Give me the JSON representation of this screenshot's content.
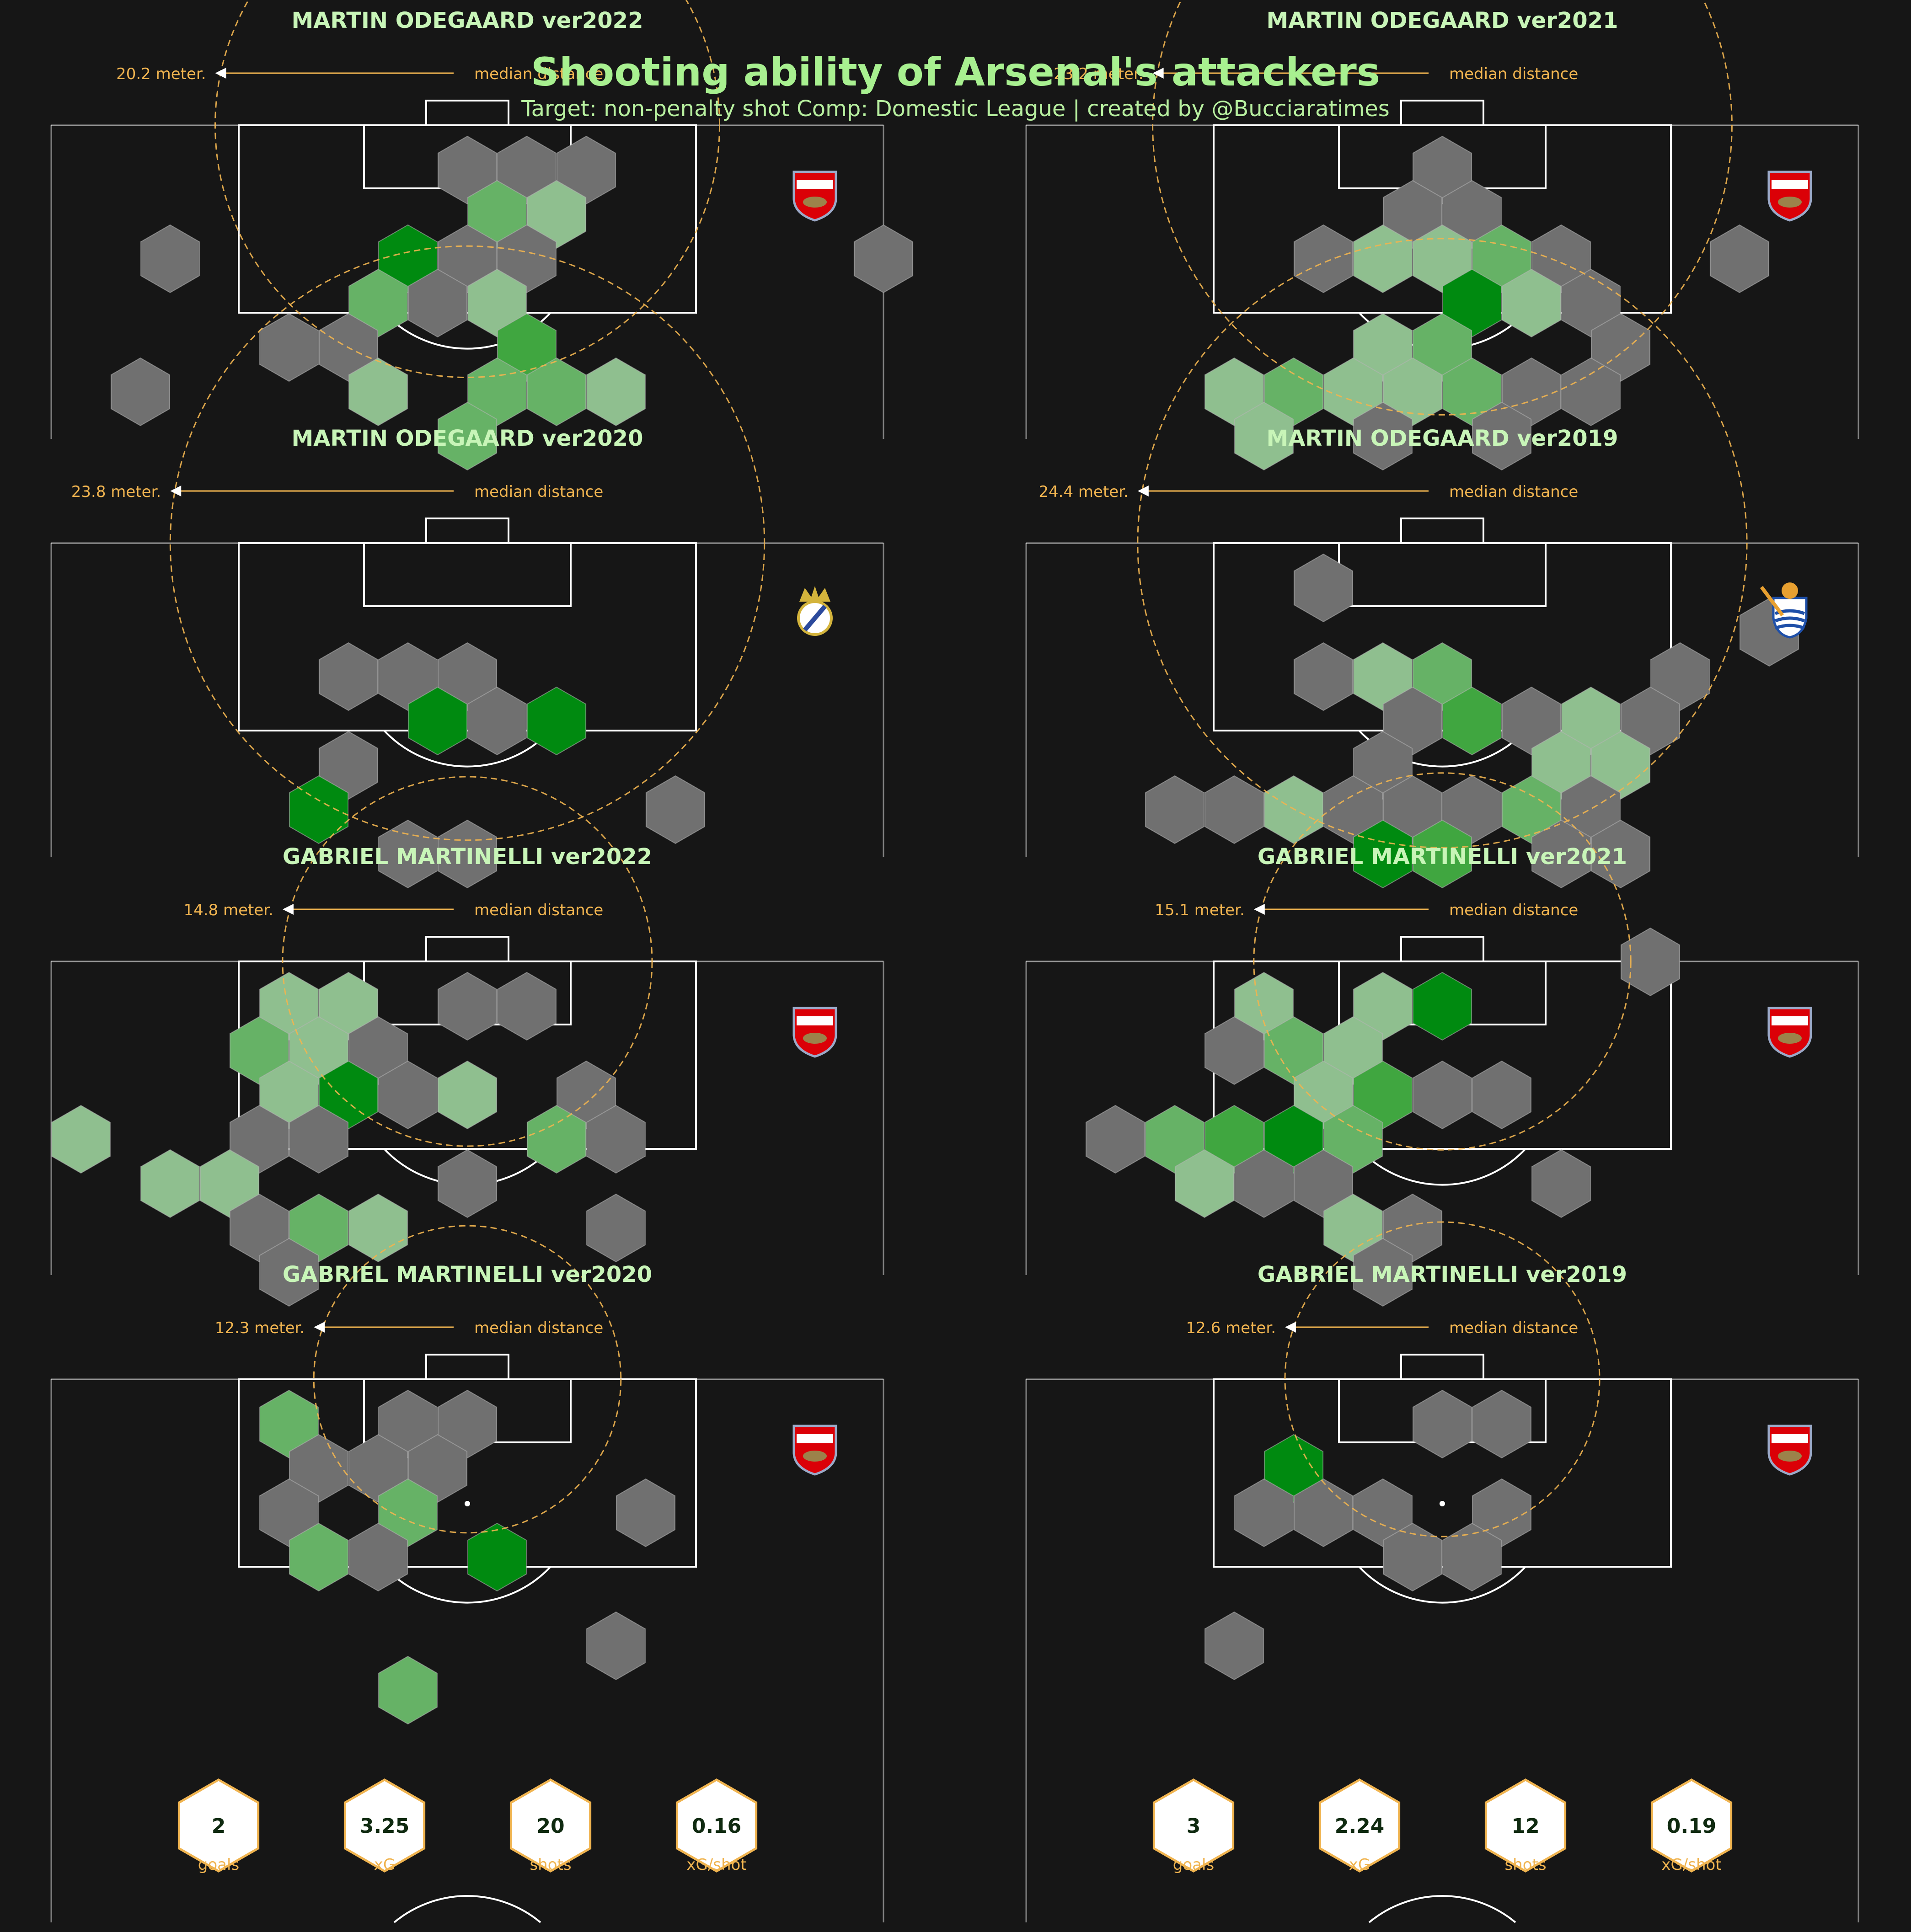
{
  "title": "Shooting ability of Arsenal's attackers",
  "subtitle": "Target: non-penalty shot Comp: Domestic League | created by @Bucciaratimes",
  "colors": {
    "background": "#161616",
    "title": "#a8f090",
    "panel_title": "#c8f5b8",
    "annotation": "#f0b450",
    "pitch_line": "#ffffff",
    "hex_grey": "#707070",
    "green_light": "#8fbf8f",
    "green_mid": "#66b266",
    "green_strong": "#40a640",
    "green_dark": "#008a10"
  },
  "median_label": "median distance",
  "chart_data": [
    {
      "type": "hexbin",
      "title": "MARTIN ODEGAARD ver2022",
      "club_logo": "arsenal-crest-icon",
      "median_distance": "20.2 meter.",
      "median_m": 20.2,
      "hexes": [
        [
          0,
          0,
          "g"
        ],
        [
          1,
          0,
          "g"
        ],
        [
          2,
          0,
          "g"
        ],
        [
          0,
          1,
          "m"
        ],
        [
          1,
          1,
          "l"
        ],
        [
          -5,
          2,
          "g"
        ],
        [
          -1,
          2,
          "d"
        ],
        [
          1,
          2,
          "g"
        ],
        [
          7,
          2,
          "g"
        ],
        [
          0,
          2,
          "g"
        ],
        [
          -2,
          3,
          "m"
        ],
        [
          -1,
          3,
          "g"
        ],
        [
          0,
          3,
          "l"
        ],
        [
          -3,
          4,
          "g"
        ],
        [
          -2,
          4,
          "g"
        ],
        [
          1,
          4,
          "s"
        ],
        [
          -6,
          5,
          "g"
        ],
        [
          -2,
          5,
          "l"
        ],
        [
          0,
          5,
          "m"
        ],
        [
          1,
          5,
          "m"
        ],
        [
          2,
          5,
          "l"
        ],
        [
          0,
          6,
          "m"
        ]
      ]
    },
    {
      "type": "hexbin",
      "title": "MARTIN ODEGAARD ver2021",
      "club_logo": "arsenal-crest-icon",
      "median_distance": "23.2 meter.",
      "median_m": 23.2,
      "hexes": [
        [
          0,
          0,
          "g"
        ],
        [
          -1,
          1,
          "g"
        ],
        [
          0,
          1,
          "g"
        ],
        [
          -2,
          2,
          "g"
        ],
        [
          -1,
          2,
          "l"
        ],
        [
          0,
          2,
          "l"
        ],
        [
          1,
          2,
          "m"
        ],
        [
          2,
          2,
          "g"
        ],
        [
          5,
          2,
          "g"
        ],
        [
          0,
          3,
          "d"
        ],
        [
          1,
          3,
          "l"
        ],
        [
          2,
          3,
          "g"
        ],
        [
          -1,
          4,
          "l"
        ],
        [
          0,
          4,
          "m"
        ],
        [
          3,
          4,
          "g"
        ],
        [
          -4,
          5,
          "l"
        ],
        [
          -3,
          5,
          "m"
        ],
        [
          -2,
          5,
          "l"
        ],
        [
          -1,
          5,
          "l"
        ],
        [
          0,
          5,
          "m"
        ],
        [
          1,
          5,
          "g"
        ],
        [
          2,
          5,
          "g"
        ],
        [
          -3,
          6,
          "l"
        ],
        [
          -1,
          6,
          "g"
        ],
        [
          1,
          6,
          "g"
        ]
      ]
    },
    {
      "type": "hexbin",
      "title": "MARTIN ODEGAARD ver2020",
      "club_logo": "real-madrid-crest-icon",
      "median_distance": "23.8 meter.",
      "median_m": 23.8,
      "hexes": [
        [
          -2,
          2,
          "g"
        ],
        [
          -1,
          2,
          "g"
        ],
        [
          0,
          2,
          "g"
        ],
        [
          -1,
          3,
          "d"
        ],
        [
          0,
          3,
          "g"
        ],
        [
          1,
          3,
          "d"
        ],
        [
          -2,
          4,
          "g"
        ],
        [
          -3,
          5,
          "d"
        ],
        [
          3,
          5,
          "g"
        ],
        [
          -1,
          6,
          "g"
        ],
        [
          0,
          6,
          "g"
        ]
      ]
    },
    {
      "type": "hexbin",
      "title": "MARTIN ODEGAARD ver2019",
      "club_logo": "real-sociedad-crest-icon",
      "median_distance": "24.4 meter.",
      "median_m": 24.4,
      "hexes": [
        [
          -2,
          0,
          "g"
        ],
        [
          5,
          1,
          "g"
        ],
        [
          -2,
          2,
          "g"
        ],
        [
          -1,
          2,
          "l"
        ],
        [
          0,
          2,
          "m"
        ],
        [
          4,
          2,
          "g"
        ],
        [
          -1,
          3,
          "g"
        ],
        [
          0,
          3,
          "s"
        ],
        [
          1,
          3,
          "g"
        ],
        [
          2,
          3,
          "l"
        ],
        [
          3,
          3,
          "g"
        ],
        [
          -1,
          4,
          "g"
        ],
        [
          2,
          4,
          "l"
        ],
        [
          3,
          4,
          "l"
        ],
        [
          -5,
          5,
          "g"
        ],
        [
          -4,
          5,
          "g"
        ],
        [
          -3,
          5,
          "l"
        ],
        [
          -2,
          5,
          "g"
        ],
        [
          -1,
          5,
          "g"
        ],
        [
          0,
          5,
          "g"
        ],
        [
          1,
          5,
          "m"
        ],
        [
          2,
          5,
          "g"
        ],
        [
          -1,
          6,
          "d"
        ],
        [
          0,
          6,
          "s"
        ],
        [
          2,
          6,
          "g"
        ],
        [
          3,
          6,
          "g"
        ]
      ]
    },
    {
      "type": "hexbin",
      "title": "GABRIEL MARTINELLI ver2022",
      "club_logo": "arsenal-crest-icon",
      "median_distance": "14.8 meter.",
      "median_m": 14.8,
      "hexes": [
        [
          -3,
          0,
          "l"
        ],
        [
          -2,
          0,
          "l"
        ],
        [
          0,
          0,
          "g"
        ],
        [
          1,
          0,
          "g"
        ],
        [
          -4,
          1,
          "m"
        ],
        [
          -3,
          1,
          "l"
        ],
        [
          -2,
          1,
          "g"
        ],
        [
          -3,
          2,
          "l"
        ],
        [
          -2,
          2,
          "d"
        ],
        [
          -1,
          2,
          "g"
        ],
        [
          0,
          2,
          "l"
        ],
        [
          2,
          2,
          "g"
        ],
        [
          -7,
          3,
          "l"
        ],
        [
          -4,
          3,
          "g"
        ],
        [
          -3,
          3,
          "g"
        ],
        [
          1,
          3,
          "m"
        ],
        [
          2,
          3,
          "g"
        ],
        [
          -5,
          4,
          "l"
        ],
        [
          -4,
          4,
          "l"
        ],
        [
          0,
          4,
          "g"
        ],
        [
          -4,
          5,
          "g"
        ],
        [
          -3,
          5,
          "m"
        ],
        [
          -2,
          5,
          "l"
        ],
        [
          2,
          5,
          "g"
        ],
        [
          -3,
          6,
          "g"
        ]
      ]
    },
    {
      "type": "hexbin",
      "title": "GABRIEL MARTINELLI ver2021",
      "club_logo": "arsenal-crest-icon",
      "median_distance": "15.1 meter.",
      "median_m": 15.1,
      "hexes": [
        [
          3,
          -1,
          "g"
        ],
        [
          -3,
          0,
          "l"
        ],
        [
          -1,
          0,
          "l"
        ],
        [
          0,
          0,
          "d"
        ],
        [
          -4,
          1,
          "g"
        ],
        [
          -3,
          1,
          "m"
        ],
        [
          -2,
          1,
          "l"
        ],
        [
          -2,
          2,
          "l"
        ],
        [
          -1,
          2,
          "s"
        ],
        [
          0,
          2,
          "g"
        ],
        [
          1,
          2,
          "g"
        ],
        [
          -6,
          3,
          "g"
        ],
        [
          -5,
          3,
          "m"
        ],
        [
          -4,
          3,
          "s"
        ],
        [
          -3,
          3,
          "d"
        ],
        [
          -2,
          3,
          "m"
        ],
        [
          -4,
          4,
          "l"
        ],
        [
          -3,
          4,
          "g"
        ],
        [
          -2,
          4,
          "g"
        ],
        [
          2,
          4,
          "g"
        ],
        [
          -2,
          5,
          "l"
        ],
        [
          -1,
          5,
          "g"
        ],
        [
          -1,
          6,
          "g"
        ]
      ]
    },
    {
      "type": "hexbin",
      "title": "GABRIEL MARTINELLI ver2020",
      "club_logo": "arsenal-crest-icon",
      "median_distance": "12.3 meter.",
      "median_m": 12.3,
      "hexes": [
        [
          -3,
          0,
          "m"
        ],
        [
          -1,
          0,
          "g"
        ],
        [
          0,
          0,
          "g"
        ],
        [
          -3,
          1,
          "g"
        ],
        [
          -2,
          1,
          "g"
        ],
        [
          -1,
          1,
          "g"
        ],
        [
          -3,
          2,
          "g"
        ],
        [
          -1,
          2,
          "m"
        ],
        [
          3,
          2,
          "g"
        ],
        [
          -3,
          3,
          "m"
        ],
        [
          -2,
          3,
          "g"
        ],
        [
          0,
          3,
          "d"
        ],
        [
          2,
          5,
          "g"
        ],
        [
          -1,
          6,
          "m"
        ]
      ],
      "stats": [
        {
          "value": "2",
          "label": "goals"
        },
        {
          "value": "3.25",
          "label": "xG"
        },
        {
          "value": "20",
          "label": "shots"
        },
        {
          "value": "0.16",
          "label": "xG/shot"
        }
      ]
    },
    {
      "type": "hexbin",
      "title": "GABRIEL MARTINELLI ver2019",
      "club_logo": "arsenal-crest-icon",
      "median_distance": "12.6 meter.",
      "median_m": 12.6,
      "hexes": [
        [
          0,
          0,
          "g"
        ],
        [
          1,
          0,
          "g"
        ],
        [
          -3,
          1,
          "d"
        ],
        [
          -3,
          2,
          "g"
        ],
        [
          -2,
          2,
          "g"
        ],
        [
          -1,
          2,
          "g"
        ],
        [
          1,
          2,
          "g"
        ],
        [
          -1,
          3,
          "g"
        ],
        [
          0,
          3,
          "g"
        ],
        [
          -4,
          5,
          "g"
        ]
      ],
      "stats": [
        {
          "value": "3",
          "label": "goals"
        },
        {
          "value": "2.24",
          "label": "xG"
        },
        {
          "value": "12",
          "label": "shots"
        },
        {
          "value": "0.19",
          "label": "xG/shot"
        }
      ]
    }
  ]
}
